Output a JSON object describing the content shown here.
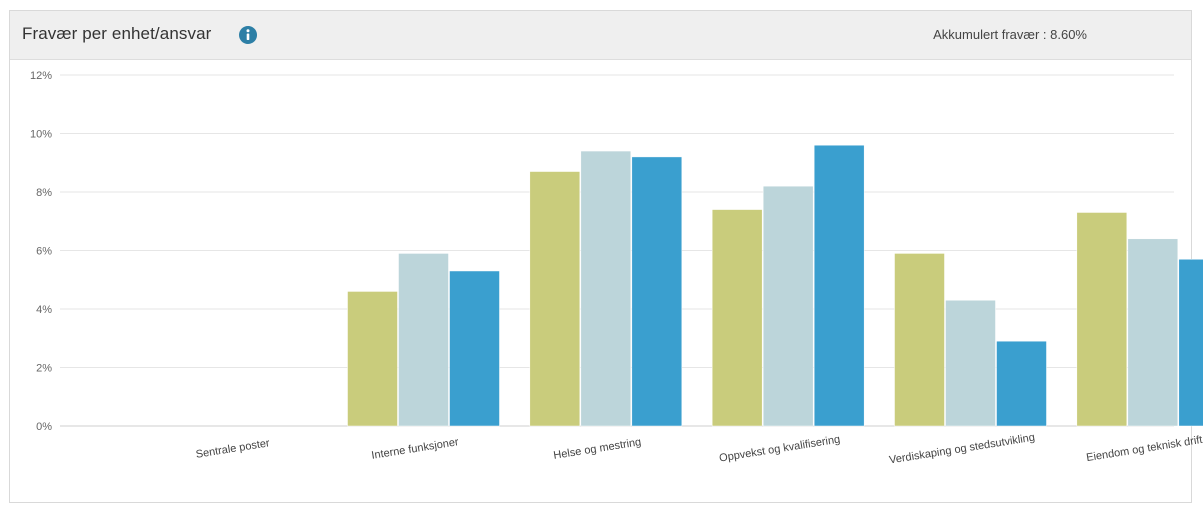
{
  "header": {
    "title": "Fravær per enhet/ansvar",
    "accumulated": "Akkumulert fravær : 8.60%"
  },
  "icons": {
    "info": "info-icon"
  },
  "colors": {
    "series": [
      "#c9cc7c",
      "#bcd5da",
      "#3a9fcf"
    ],
    "grid": "#e6e6e6",
    "header_bg": "#efefef",
    "icon": "#2d7fa6"
  },
  "chart_data": {
    "type": "bar",
    "categories": [
      "Sentrale poster",
      "Interne funksjoner",
      "Helse og mestring",
      "Oppvekst og kvalifisering",
      "Verdiskaping og stedsutvikling",
      "Eiendom og teknisk drift"
    ],
    "series": [
      {
        "values": [
          0,
          4.6,
          8.7,
          7.4,
          5.9,
          7.3
        ]
      },
      {
        "values": [
          0,
          5.9,
          9.4,
          8.2,
          4.3,
          6.4
        ]
      },
      {
        "values": [
          0,
          5.3,
          9.2,
          9.6,
          2.9,
          5.7
        ]
      }
    ],
    "yticks": [
      "0%",
      "2%",
      "4%",
      "6%",
      "8%",
      "10%",
      "12%"
    ],
    "ylim": [
      0,
      12
    ],
    "grid": true,
    "title": "",
    "xlabel": "",
    "ylabel": ""
  }
}
